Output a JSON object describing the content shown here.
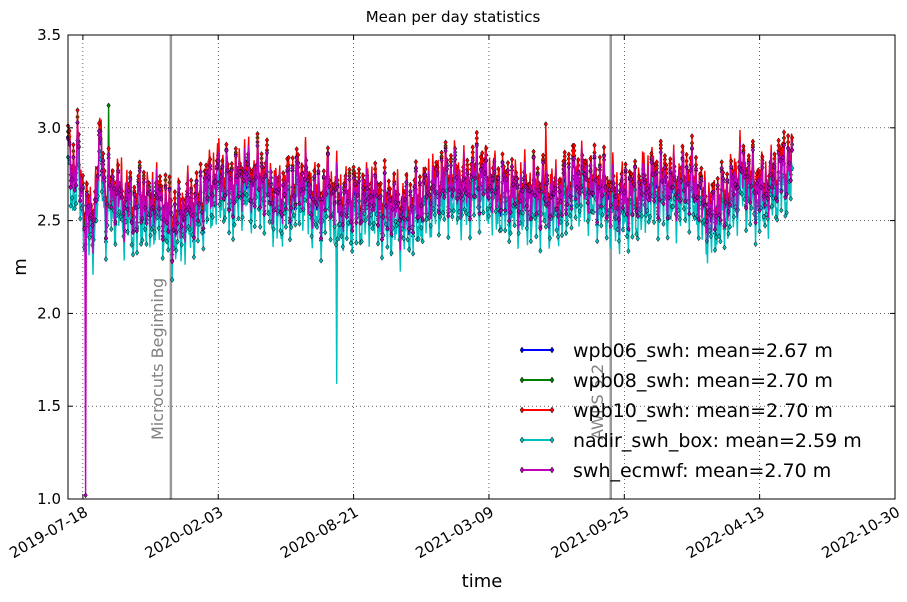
{
  "chart_data": {
    "type": "line",
    "title": "Mean per day statistics",
    "xlabel": "time",
    "ylabel": "m",
    "ylim": [
      1.0,
      3.5
    ],
    "yticks": [
      1.0,
      1.5,
      2.0,
      2.5,
      3.0,
      3.5
    ],
    "xlim": [
      "2019-06-26",
      "2022-10-30"
    ],
    "xticks": [
      "2019-07-18",
      "2020-02-03",
      "2020-08-21",
      "2021-03-09",
      "2021-09-25",
      "2022-04-13",
      "2022-10-30"
    ],
    "grid": true,
    "legend_position": "lower-right",
    "vertical_lines": [
      {
        "date": "2019-11-25",
        "label": "Microcuts Beginning"
      },
      {
        "date": "2021-09-05",
        "label": "AWPS 5.2"
      }
    ],
    "series": [
      {
        "name": "wpb06_swh",
        "legend": "wpb06_swh: mean=2.67 m",
        "color": "#0000ff",
        "offset": 0.0,
        "extra": [
          {
            "date": "2020-10-20",
            "value": 2.53
          },
          {
            "date": "2020-10-26",
            "value": 2.51
          }
        ]
      },
      {
        "name": "wpb08_swh",
        "legend": "wpb08_swh: mean=2.70 m",
        "color": "#008000",
        "offset": 0.02,
        "extra": [
          {
            "date": "2019-08-25",
            "value": 3.12
          }
        ]
      },
      {
        "name": "wpb10_swh",
        "legend": "wpb10_swh: mean=2.70 m",
        "color": "#ff0000",
        "offset": 0.05,
        "extra": [
          {
            "date": "2021-06-01",
            "value": 3.02
          }
        ]
      },
      {
        "name": "nadir_swh_box",
        "legend": "nadir_swh_box: mean=2.59 m",
        "color": "#00bfbf",
        "offset": -0.11,
        "extra": [
          {
            "date": "2020-07-26",
            "value": 2.37
          },
          {
            "date": "2020-07-27",
            "value": 1.62
          },
          {
            "date": "2020-07-28",
            "value": 2.4
          }
        ]
      },
      {
        "name": "swh_ecmwf",
        "legend": "swh_ecmwf: mean=2.70 m",
        "color": "#bf00bf",
        "offset": 0.0,
        "extra": [
          {
            "date": "2019-07-21",
            "value": 2.43
          },
          {
            "date": "2019-07-22",
            "value": 1.02
          },
          {
            "date": "2019-07-23",
            "value": 2.45
          }
        ]
      }
    ],
    "base_profile": {
      "start": "2019-06-26",
      "end": "2022-06-01",
      "step_days": 7,
      "values": [
        2.85,
        2.72,
        2.88,
        2.6,
        2.55,
        2.47,
        2.65,
        2.95,
        2.55,
        2.7,
        2.62,
        2.65,
        2.58,
        2.6,
        2.55,
        2.6,
        2.63,
        2.55,
        2.62,
        2.6,
        2.58,
        2.53,
        2.48,
        2.5,
        2.55,
        2.55,
        2.58,
        2.56,
        2.6,
        2.65,
        2.7,
        2.7,
        2.75,
        2.72,
        2.68,
        2.68,
        2.7,
        2.75,
        2.73,
        2.7,
        2.72,
        2.72,
        2.7,
        2.65,
        2.62,
        2.62,
        2.65,
        2.65,
        2.68,
        2.7,
        2.72,
        2.65,
        2.62,
        2.6,
        2.6,
        2.7,
        2.62,
        2.62,
        2.58,
        2.6,
        2.62,
        2.6,
        2.62,
        2.62,
        2.65,
        2.6,
        2.58,
        2.56,
        2.58,
        2.58,
        2.55,
        2.55,
        2.56,
        2.58,
        2.6,
        2.62,
        2.65,
        2.66,
        2.68,
        2.72,
        2.7,
        2.72,
        2.7,
        2.68,
        2.66,
        2.7,
        2.74,
        2.73,
        2.72,
        2.7,
        2.68,
        2.66,
        2.66,
        2.65,
        2.64,
        2.64,
        2.64,
        2.64,
        2.64,
        2.65,
        2.64,
        2.64,
        2.62,
        2.61,
        2.63,
        2.67,
        2.7,
        2.72,
        2.73,
        2.72,
        2.7,
        2.68,
        2.68,
        2.66,
        2.64,
        2.62,
        2.6,
        2.62,
        2.62,
        2.63,
        2.64,
        2.66,
        2.68,
        2.7,
        2.7,
        2.7,
        2.7,
        2.68,
        2.68,
        2.68,
        2.7,
        2.72,
        2.7,
        2.66,
        2.6,
        2.55,
        2.54,
        2.58,
        2.6,
        2.62,
        2.65,
        2.7,
        2.76,
        2.74,
        2.7,
        2.68,
        2.66,
        2.66,
        2.68,
        2.72,
        2.76,
        2.78,
        2.78,
        2.8,
        2.8,
        2.82,
        2.82,
        2.8
      ]
    }
  }
}
